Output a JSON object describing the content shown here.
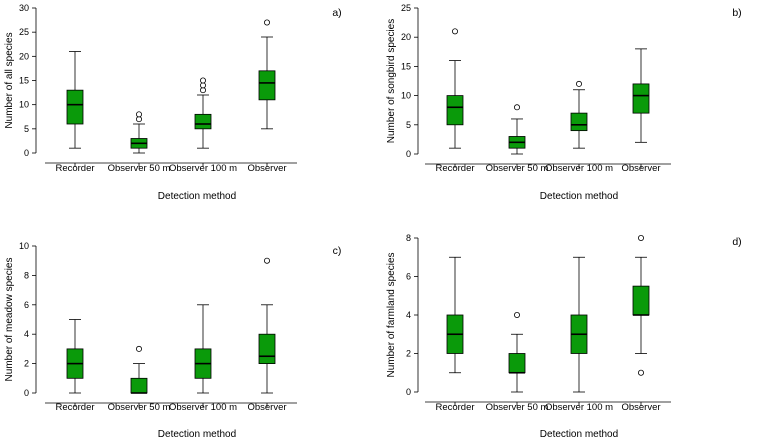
{
  "chart_data": [
    {
      "type": "box",
      "panel_label": "a)",
      "xlabel": "Detection method",
      "ylabel": "Number of all species",
      "ylim": [
        0,
        30
      ],
      "yticks": [
        0,
        5,
        10,
        15,
        20,
        25,
        30
      ],
      "categories": [
        "Recorder",
        "Observer 50 m",
        "Observer 100 m",
        "Observer"
      ],
      "boxes": [
        {
          "min": 1,
          "q1": 6,
          "median": 10,
          "q3": 13,
          "max": 21,
          "outliers": []
        },
        {
          "min": 0,
          "q1": 1,
          "median": 2,
          "q3": 3,
          "max": 6,
          "outliers": [
            7,
            8
          ]
        },
        {
          "min": 1,
          "q1": 5,
          "median": 6,
          "q3": 8,
          "max": 12,
          "outliers": [
            13,
            14,
            15
          ]
        },
        {
          "min": 5,
          "q1": 11,
          "median": 14.5,
          "q3": 17,
          "max": 24,
          "outliers": [
            27
          ]
        }
      ]
    },
    {
      "type": "box",
      "panel_label": "b)",
      "xlabel": "Detection method",
      "ylabel": "Number of songbird species",
      "ylim": [
        0,
        25
      ],
      "yticks": [
        0,
        5,
        10,
        15,
        20,
        25
      ],
      "categories": [
        "Recorder",
        "Observer 50 m",
        "Observer 100 m",
        "Observer"
      ],
      "boxes": [
        {
          "min": 1,
          "q1": 5,
          "median": 8,
          "q3": 10,
          "max": 16,
          "outliers": [
            21
          ]
        },
        {
          "min": 0,
          "q1": 1,
          "median": 2,
          "q3": 3,
          "max": 6,
          "outliers": [
            8
          ]
        },
        {
          "min": 1,
          "q1": 4,
          "median": 5,
          "q3": 7,
          "max": 11,
          "outliers": [
            12
          ]
        },
        {
          "min": 2,
          "q1": 7,
          "median": 10,
          "q3": 12,
          "max": 18,
          "outliers": []
        }
      ]
    },
    {
      "type": "box",
      "panel_label": "c)",
      "xlabel": "Detection method",
      "ylabel": "Number of meadow species",
      "ylim": [
        0,
        10
      ],
      "yticks": [
        0,
        2,
        4,
        6,
        8,
        10
      ],
      "categories": [
        "Recorder",
        "Observer 50 m",
        "Observer 100 m",
        "Observer"
      ],
      "boxes": [
        {
          "min": 0,
          "q1": 1,
          "median": 2,
          "q3": 3,
          "max": 5,
          "outliers": []
        },
        {
          "min": 0,
          "q1": 0,
          "median": 0,
          "q3": 1,
          "max": 2,
          "outliers": [
            3
          ]
        },
        {
          "min": 0,
          "q1": 1,
          "median": 2,
          "q3": 3,
          "max": 6,
          "outliers": []
        },
        {
          "min": 0,
          "q1": 2,
          "median": 2.5,
          "q3": 4,
          "max": 6,
          "outliers": [
            9
          ]
        }
      ]
    },
    {
      "type": "box",
      "panel_label": "d)",
      "xlabel": "Detection method",
      "ylabel": "Number of farmland species",
      "ylim": [
        0,
        8
      ],
      "yticks": [
        0,
        2,
        4,
        6,
        8
      ],
      "categories": [
        "Recorder",
        "Observer 50 m",
        "Observer 100 m",
        "Observer"
      ],
      "boxes": [
        {
          "min": 1,
          "q1": 2,
          "median": 3,
          "q3": 4,
          "max": 7,
          "outliers": []
        },
        {
          "min": 0,
          "q1": 1,
          "median": 1,
          "q3": 2,
          "max": 3,
          "outliers": [
            4
          ]
        },
        {
          "min": 0,
          "q1": 2,
          "median": 3,
          "q3": 4,
          "max": 7,
          "outliers": []
        },
        {
          "min": 2,
          "q1": 4,
          "median": 4,
          "q3": 5.5,
          "max": 7,
          "outliers": [
            1,
            8
          ]
        }
      ]
    }
  ]
}
